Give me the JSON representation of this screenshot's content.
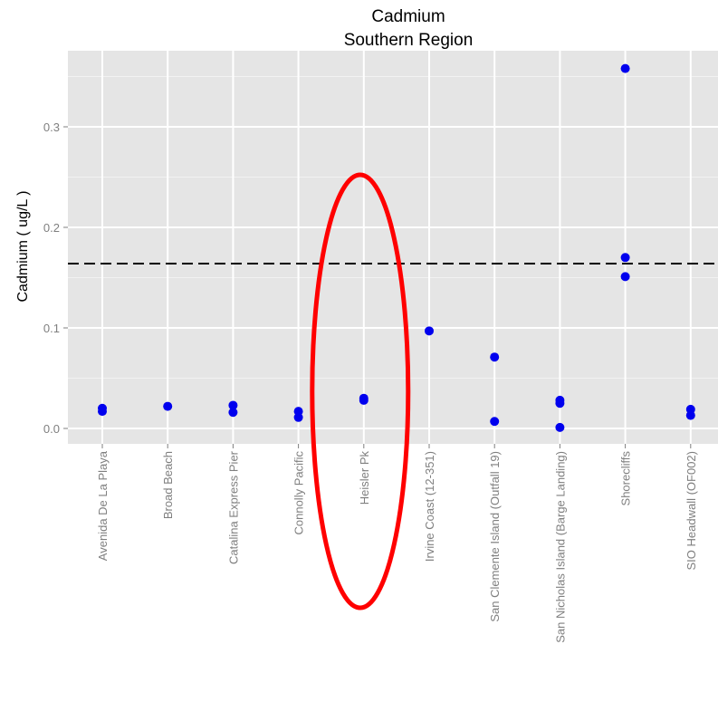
{
  "chart_data": {
    "type": "scatter",
    "title": "Cadmium",
    "subtitle": "Southern Region",
    "xlabel": "",
    "ylabel": "Cadmium ( ug/L )",
    "ylim": [
      -0.016,
      0.37
    ],
    "yticks": [
      0.0,
      0.1,
      0.2,
      0.3
    ],
    "ytick_labels": [
      "0.0",
      "0.1",
      "0.2",
      "0.3"
    ],
    "grid": true,
    "legend": "none",
    "reference_line": {
      "y": 0.164,
      "style": "dashed",
      "color": "#000000"
    },
    "categories": [
      "Avenida De La Playa",
      "Broad Beach",
      "Catalina Express Pier",
      "Connolly Pacific",
      "Heisler Pk",
      "Irvine Coast (12-351)",
      "San Clemente Island (Outfall 19)",
      "San Nicholas Island (Barge Landing)",
      "Shorecliffs",
      "SIO Headwall (OF002)"
    ],
    "series": [
      {
        "color": "#0000ee",
        "points": [
          {
            "x": "Avenida De La Playa",
            "y": 0.02
          },
          {
            "x": "Avenida De La Playa",
            "y": 0.017
          },
          {
            "x": "Broad Beach",
            "y": 0.022
          },
          {
            "x": "Catalina Express Pier",
            "y": 0.023
          },
          {
            "x": "Catalina Express Pier",
            "y": 0.016
          },
          {
            "x": "Connolly Pacific",
            "y": 0.017
          },
          {
            "x": "Connolly Pacific",
            "y": 0.011
          },
          {
            "x": "Heisler Pk",
            "y": 0.03
          },
          {
            "x": "Heisler Pk",
            "y": 0.028
          },
          {
            "x": "Irvine Coast (12-351)",
            "y": 0.097
          },
          {
            "x": "San Clemente Island (Outfall 19)",
            "y": 0.071
          },
          {
            "x": "San Clemente Island (Outfall 19)",
            "y": 0.007
          },
          {
            "x": "San Nicholas Island (Barge Landing)",
            "y": 0.028
          },
          {
            "x": "San Nicholas Island (Barge Landing)",
            "y": 0.025
          },
          {
            "x": "San Nicholas Island (Barge Landing)",
            "y": 0.001
          },
          {
            "x": "Shorecliffs",
            "y": 0.358
          },
          {
            "x": "Shorecliffs",
            "y": 0.17
          },
          {
            "x": "Shorecliffs",
            "y": 0.151
          },
          {
            "x": "SIO Headwall (OF002)",
            "y": 0.019
          },
          {
            "x": "SIO Headwall (OF002)",
            "y": 0.013
          }
        ]
      }
    ],
    "annotations": [
      {
        "type": "ellipse",
        "around": "Heisler Pk",
        "color": "#ff0000"
      }
    ]
  }
}
